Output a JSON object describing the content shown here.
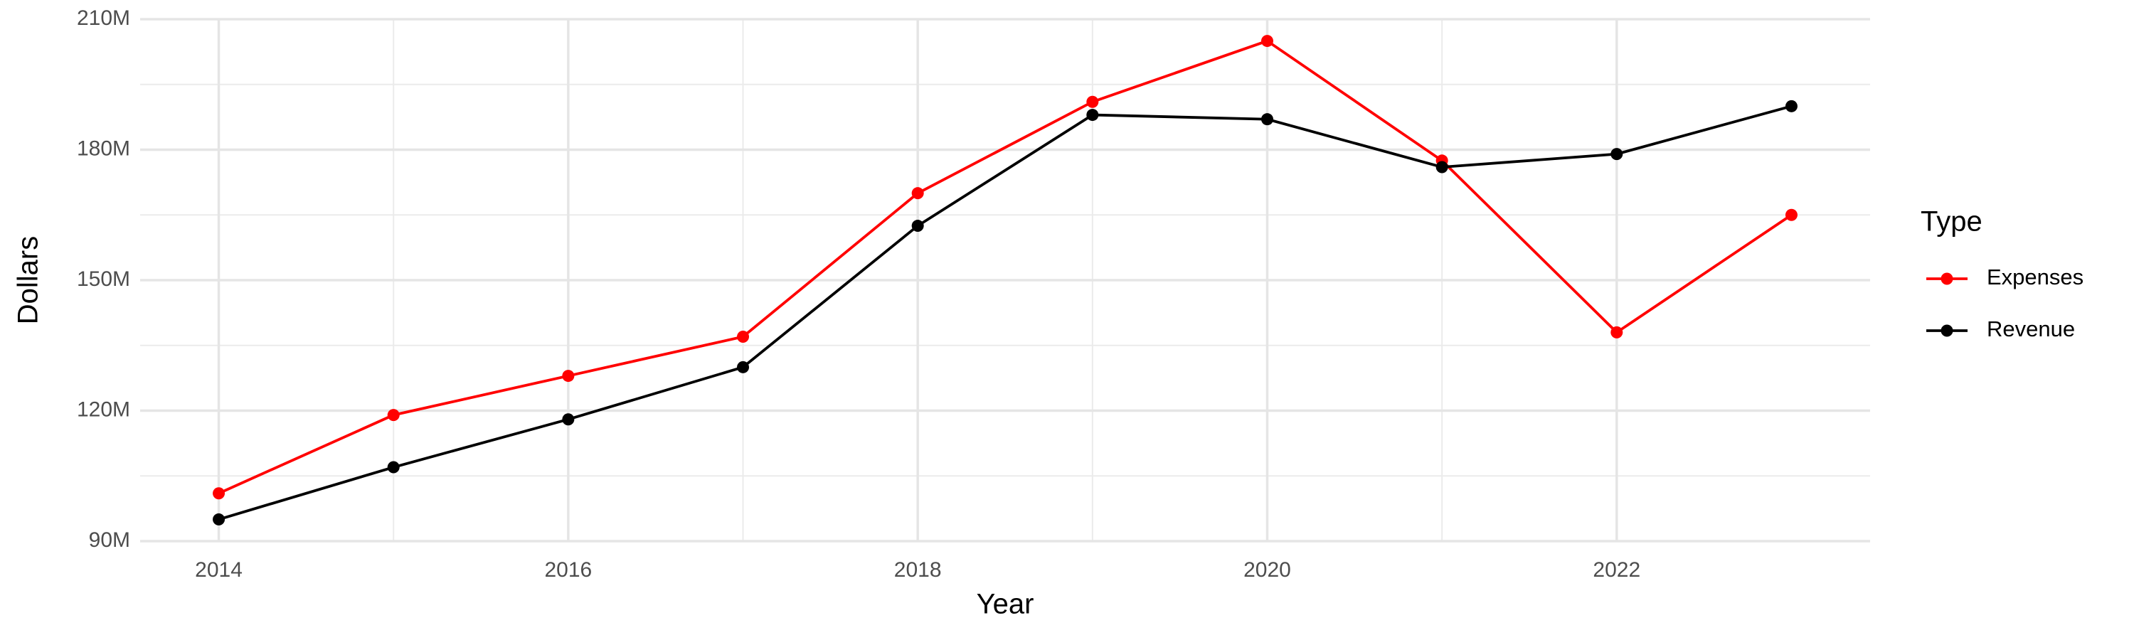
{
  "chart_data": {
    "type": "line",
    "x_label": "Year",
    "y_label": "Dollars",
    "legend_title": "Type",
    "x": [
      2014,
      2015,
      2016,
      2017,
      2018,
      2019,
      2020,
      2021,
      2022,
      2023
    ],
    "series": [
      {
        "name": "Expenses",
        "color": "#ff0000",
        "values": [
          101000000,
          119000000,
          128000000,
          137000000,
          170000000,
          191000000,
          205000000,
          177500000,
          138000000,
          165000000
        ]
      },
      {
        "name": "Revenue",
        "color": "#000000",
        "values": [
          95000000,
          107000000,
          118000000,
          130000000,
          162500000,
          188000000,
          187000000,
          176000000,
          179000000,
          190000000
        ]
      }
    ],
    "xlim": [
      2013.55,
      2023.45
    ],
    "xticks": [
      2014,
      2016,
      2018,
      2020,
      2022
    ],
    "ylim": [
      90000000,
      210000000
    ],
    "yticks": [
      {
        "value": 90000000,
        "label": "90M"
      },
      {
        "value": 120000000,
        "label": "120M"
      },
      {
        "value": 150000000,
        "label": "150M"
      },
      {
        "value": 180000000,
        "label": "180M"
      },
      {
        "value": 210000000,
        "label": "210M"
      }
    ],
    "grid": true,
    "legend": "right"
  }
}
